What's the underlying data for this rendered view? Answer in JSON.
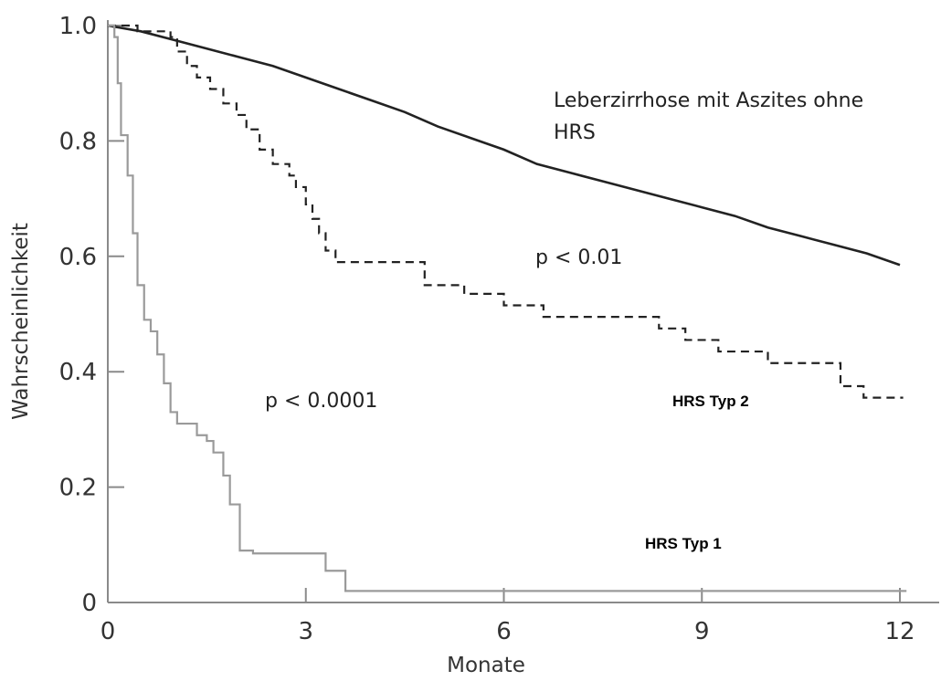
{
  "chart_data": {
    "type": "line",
    "xlabel": "Monate",
    "ylabel": "Wahrscheinlichkeit",
    "xlim": [
      0,
      12.5
    ],
    "ylim": [
      0,
      1.05
    ],
    "x_ticks": [
      0,
      3,
      6,
      9,
      12
    ],
    "x_tick_labels": [
      "0",
      "3",
      "6",
      "9",
      "12"
    ],
    "y_ticks": [
      0,
      0.2,
      0.4,
      0.6,
      0.8,
      1.0
    ],
    "y_tick_labels": [
      "0",
      "0.2",
      "0.4",
      "0.6",
      "0.8",
      "1.0"
    ],
    "grid": false,
    "series": [
      {
        "name": "Leberzirrhose mit Aszites ohne HRS",
        "color": "#222222",
        "style": "solid",
        "step": false,
        "x": [
          0,
          0.5,
          1,
          1.5,
          2,
          2.5,
          3,
          3.5,
          4,
          4.5,
          5,
          5.5,
          6,
          6.5,
          7,
          7.5,
          8,
          8.5,
          9,
          9.5,
          10,
          10.5,
          11,
          11.5,
          12
        ],
        "y": [
          1.0,
          0.99,
          0.975,
          0.96,
          0.945,
          0.93,
          0.91,
          0.89,
          0.87,
          0.85,
          0.825,
          0.805,
          0.785,
          0.76,
          0.745,
          0.73,
          0.715,
          0.7,
          0.685,
          0.67,
          0.65,
          0.635,
          0.62,
          0.605,
          0.585
        ]
      },
      {
        "name": "HRS Typ 2",
        "color": "#222222",
        "style": "dashed",
        "step": true,
        "x": [
          0,
          0.45,
          0.95,
          1.05,
          1.2,
          1.35,
          1.55,
          1.75,
          1.95,
          2.1,
          2.3,
          2.5,
          2.75,
          2.85,
          3.0,
          3.1,
          3.2,
          3.3,
          3.45,
          3.6,
          3.75,
          4.0,
          4.8,
          4.95,
          5.4,
          6.0,
          6.35,
          6.6,
          7.2,
          8.0,
          8.35,
          8.75,
          9.25,
          9.45,
          9.65,
          10.0,
          10.6,
          11.1,
          11.45,
          12.05
        ],
        "y": [
          1.0,
          0.99,
          0.98,
          0.955,
          0.93,
          0.91,
          0.89,
          0.865,
          0.845,
          0.82,
          0.785,
          0.76,
          0.74,
          0.72,
          0.69,
          0.665,
          0.64,
          0.61,
          0.59,
          0.59,
          0.59,
          0.59,
          0.55,
          0.55,
          0.535,
          0.515,
          0.515,
          0.495,
          0.495,
          0.495,
          0.475,
          0.455,
          0.435,
          0.435,
          0.435,
          0.415,
          0.415,
          0.375,
          0.355,
          0.355
        ]
      },
      {
        "name": "HRS Typ 1",
        "color": "#9a9a9a",
        "style": "solid",
        "step": true,
        "x": [
          0,
          0.1,
          0.15,
          0.2,
          0.3,
          0.38,
          0.45,
          0.55,
          0.65,
          0.75,
          0.85,
          0.95,
          1.05,
          1.2,
          1.35,
          1.5,
          1.6,
          1.75,
          1.85,
          2.0,
          2.2,
          2.5,
          3.3,
          3.6,
          4.0,
          6.0,
          9.0,
          12.1
        ],
        "y": [
          1.0,
          0.98,
          0.9,
          0.81,
          0.74,
          0.64,
          0.55,
          0.49,
          0.47,
          0.43,
          0.38,
          0.33,
          0.31,
          0.31,
          0.29,
          0.28,
          0.26,
          0.22,
          0.17,
          0.09,
          0.085,
          0.085,
          0.055,
          0.02,
          0.02,
          0.02,
          0.02,
          0.02
        ]
      }
    ],
    "annotations": {
      "series_label_1_line1": "Leberzirrhose mit Aszites ohne",
      "series_label_1_line2": "HRS",
      "p_value_1": "p < 0.01",
      "p_value_2": "p < 0.0001",
      "series_label_2": "HRS Typ 2",
      "series_label_3": "HRS Typ 1"
    }
  }
}
